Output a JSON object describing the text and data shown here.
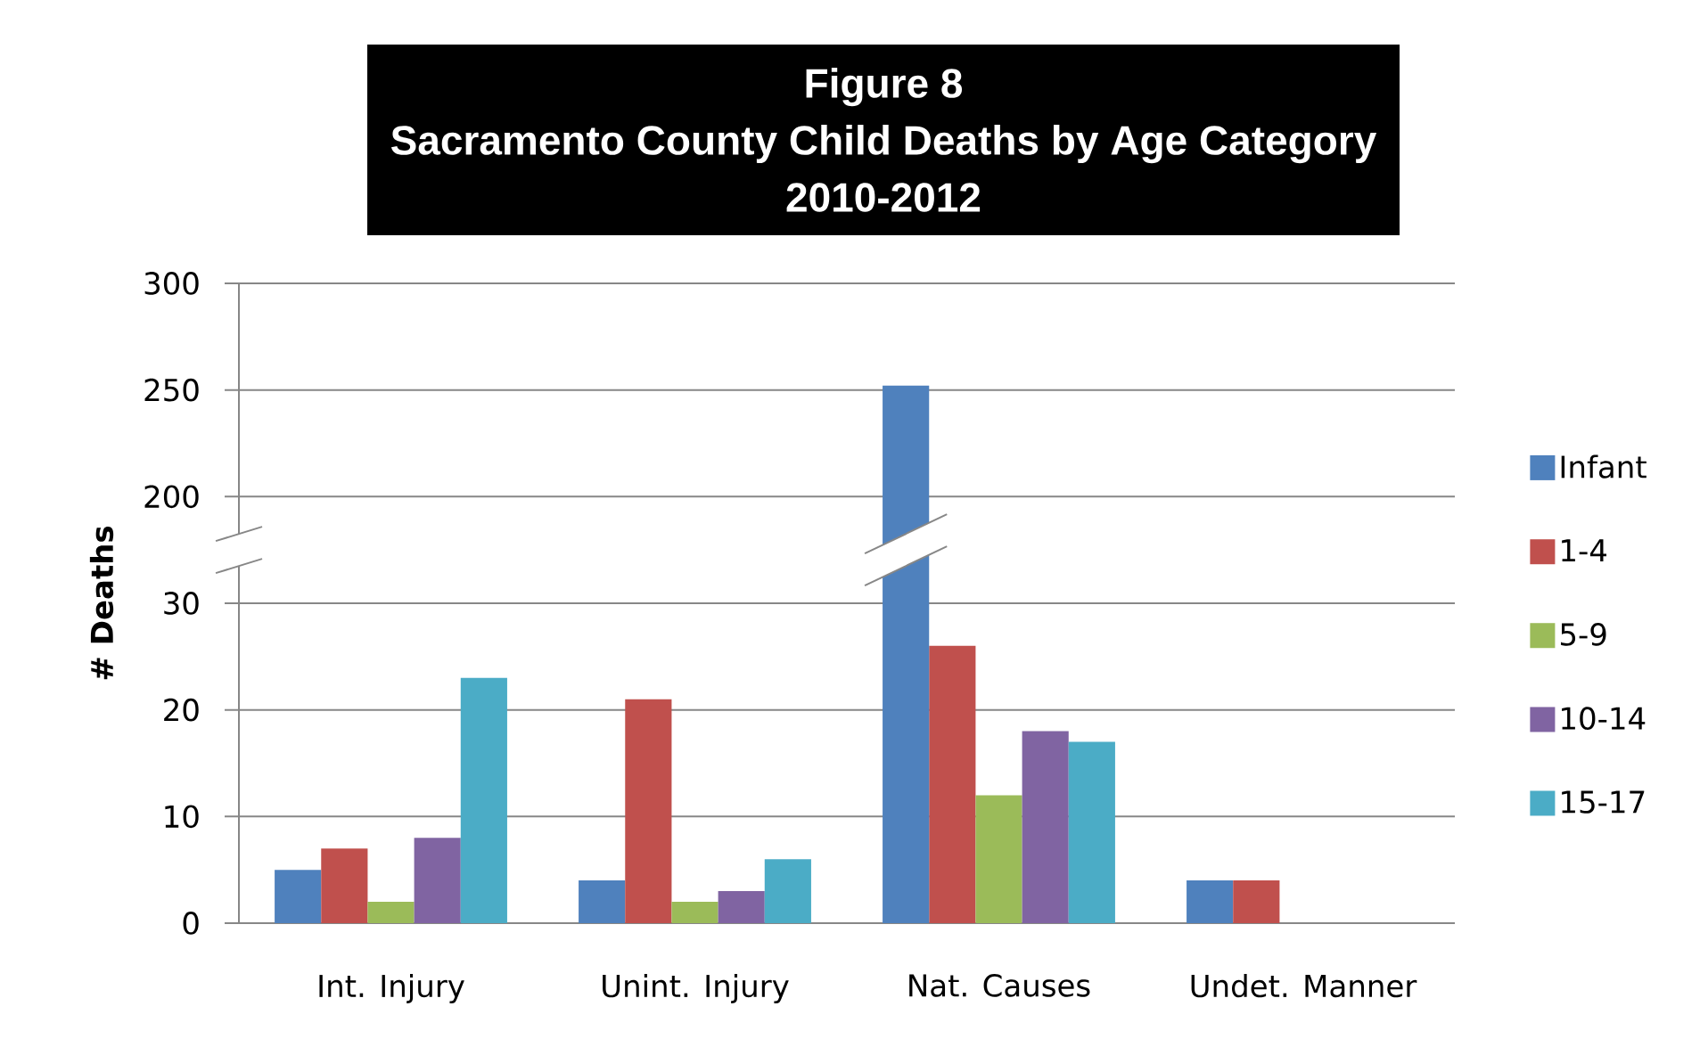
{
  "chart_data": {
    "type": "bar",
    "title": "Figure 8",
    "subtitle": "Sacramento County Child Deaths by Age Category 2010-2012",
    "y2label": "# Deaths",
    "categories": [
      "Int. Injury",
      "Unint. Injury",
      "Nat. Causes",
      "Undet. Manner"
    ],
    "series": [
      {
        "name": "Infant",
        "color": "#4f81bd",
        "values": [
          5,
          4,
          null,
          4
        ]
      },
      {
        "name": "1-4",
        "color": "#c0504d",
        "values": [
          7,
          21,
          26,
          4
        ]
      },
      {
        "name": "5-9",
        "color": "#9bbb59",
        "values": [
          2,
          2,
          12,
          0
        ]
      },
      {
        "name": "10-14",
        "color": "#8064a2",
        "values": [
          8,
          3,
          18,
          0
        ]
      },
      {
        "name": "15-17",
        "color": "#4bacc6",
        "values": [
          23,
          6,
          17,
          0
        ]
      },
      {
        "color": "#4f81bd",
        "values": [
          null,
          null,
          252,
          null
        ],
        "axis": "y2"
      }
    ],
    "ylim": [
      0,
      60
    ],
    "yticks": [
      0,
      10,
      20,
      30
    ],
    "y2lim": [
      0,
      300
    ],
    "y2ticks": [
      200,
      250,
      300
    ],
    "grid": "y",
    "legend": "right"
  }
}
